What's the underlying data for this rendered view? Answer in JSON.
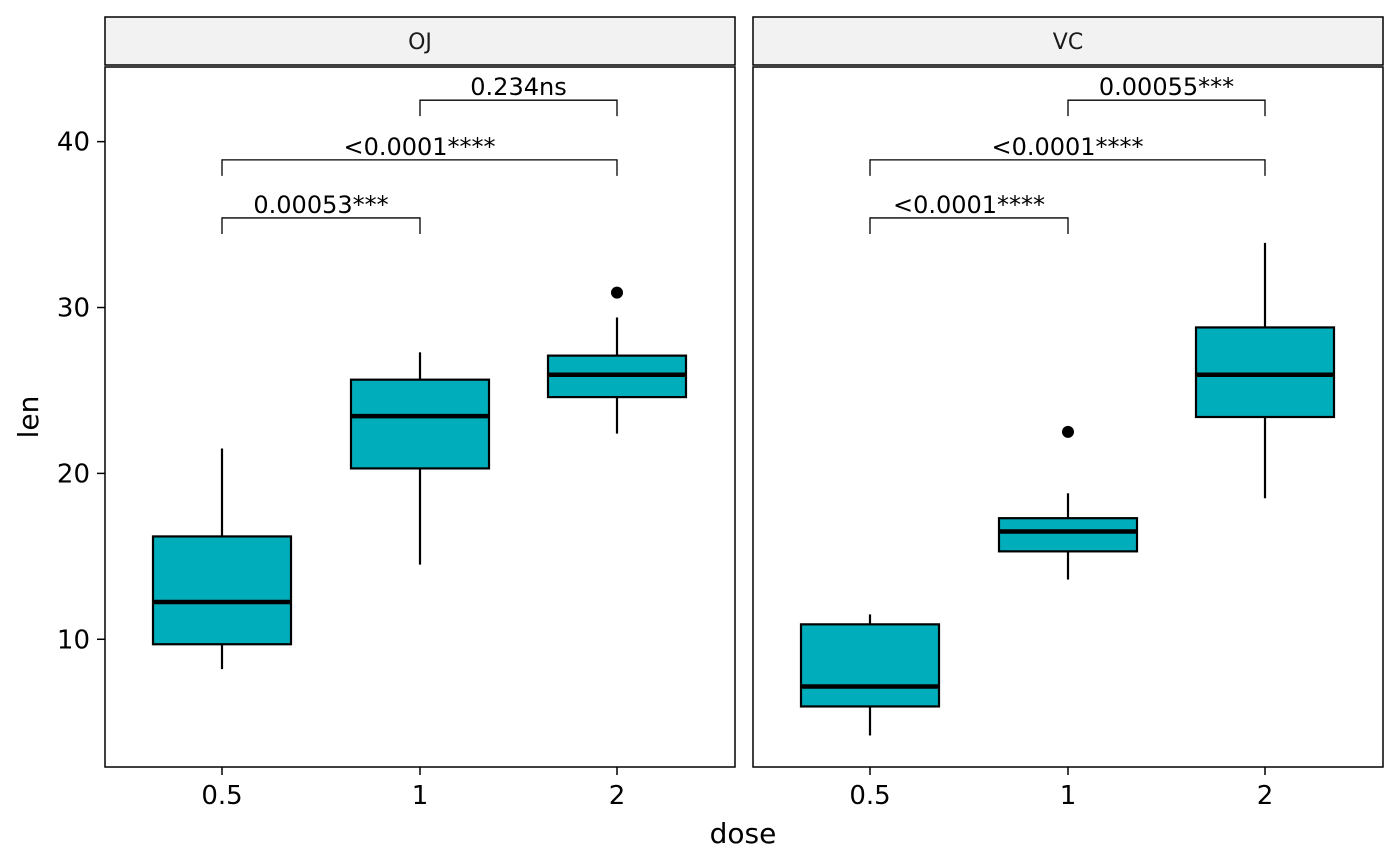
{
  "colors": {
    "box_fill": "#00aebb",
    "strip_fill": "#f2f2f2",
    "line": "#000000"
  },
  "chart_data": {
    "type": "box",
    "xlabel": "dose",
    "ylabel": "len",
    "ylim": [
      2.3,
      44.5
    ],
    "yticks": [
      10,
      20,
      30,
      40
    ],
    "categories": [
      "0.5",
      "1",
      "2"
    ],
    "facets": [
      {
        "label": "OJ",
        "boxes": [
          {
            "x": "0.5",
            "lower_whisker": 8.2,
            "q1": 9.7,
            "median": 12.25,
            "q3": 16.2,
            "upper_whisker": 21.5,
            "outliers": []
          },
          {
            "x": "1",
            "lower_whisker": 14.5,
            "q1": 20.3,
            "median": 23.45,
            "q3": 25.65,
            "upper_whisker": 27.3,
            "outliers": []
          },
          {
            "x": "2",
            "lower_whisker": 22.4,
            "q1": 24.6,
            "median": 25.95,
            "q3": 27.1,
            "upper_whisker": 29.4,
            "outliers": [
              30.9
            ]
          }
        ],
        "comparisons": [
          {
            "group1": "0.5",
            "group2": "1",
            "y": 35.4,
            "label": "0.00053***"
          },
          {
            "group1": "0.5",
            "group2": "2",
            "y": 38.9,
            "label": "<0.0001****"
          },
          {
            "group1": "1",
            "group2": "2",
            "y": 42.5,
            "label": "0.234ns"
          }
        ]
      },
      {
        "label": "VC",
        "boxes": [
          {
            "x": "0.5",
            "lower_whisker": 4.2,
            "q1": 5.95,
            "median": 7.15,
            "q3": 10.9,
            "upper_whisker": 11.5,
            "outliers": []
          },
          {
            "x": "1",
            "lower_whisker": 13.6,
            "q1": 15.3,
            "median": 16.5,
            "q3": 17.3,
            "upper_whisker": 18.8,
            "outliers": [
              22.5
            ]
          },
          {
            "x": "2",
            "lower_whisker": 18.5,
            "q1": 23.4,
            "median": 25.95,
            "q3": 28.8,
            "upper_whisker": 33.9,
            "outliers": []
          }
        ],
        "comparisons": [
          {
            "group1": "0.5",
            "group2": "1",
            "y": 35.4,
            "label": "<0.0001****"
          },
          {
            "group1": "0.5",
            "group2": "2",
            "y": 38.9,
            "label": "<0.0001****"
          },
          {
            "group1": "1",
            "group2": "2",
            "y": 42.5,
            "label": "0.00055***"
          }
        ]
      }
    ]
  }
}
